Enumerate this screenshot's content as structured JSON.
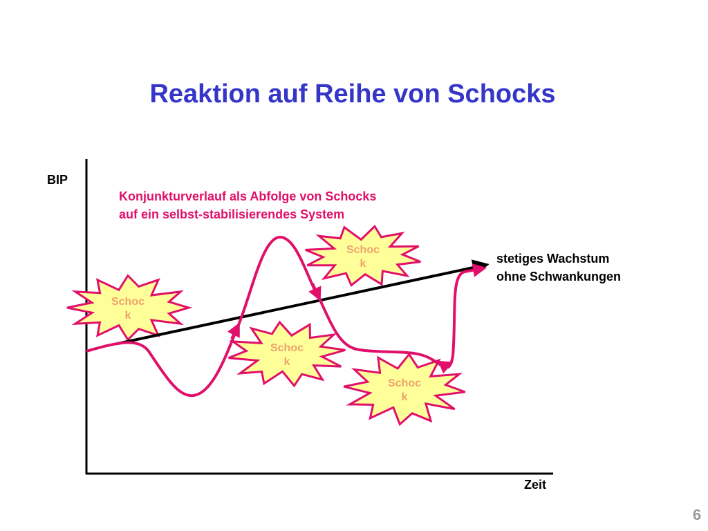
{
  "title": "Reaktion auf Reihe von Schocks",
  "axes": {
    "y_label": "BIP",
    "x_label": "Zeit"
  },
  "annotation": {
    "lines": [
      "Konjunkturverlauf als Abfolge von Schocks",
      "auf ein selbst-stabilisierendes System"
    ]
  },
  "trend_label": {
    "lines": [
      "stetiges Wachstum",
      "ohne Schwankungen"
    ]
  },
  "shocks": [
    {
      "label": [
        "Schoc",
        "k"
      ]
    },
    {
      "label": [
        "Schoc",
        "k"
      ]
    },
    {
      "label": [
        "Schoc",
        "k"
      ]
    },
    {
      "label": [
        "Schoc",
        "k"
      ]
    }
  ],
  "page_number": "6"
}
